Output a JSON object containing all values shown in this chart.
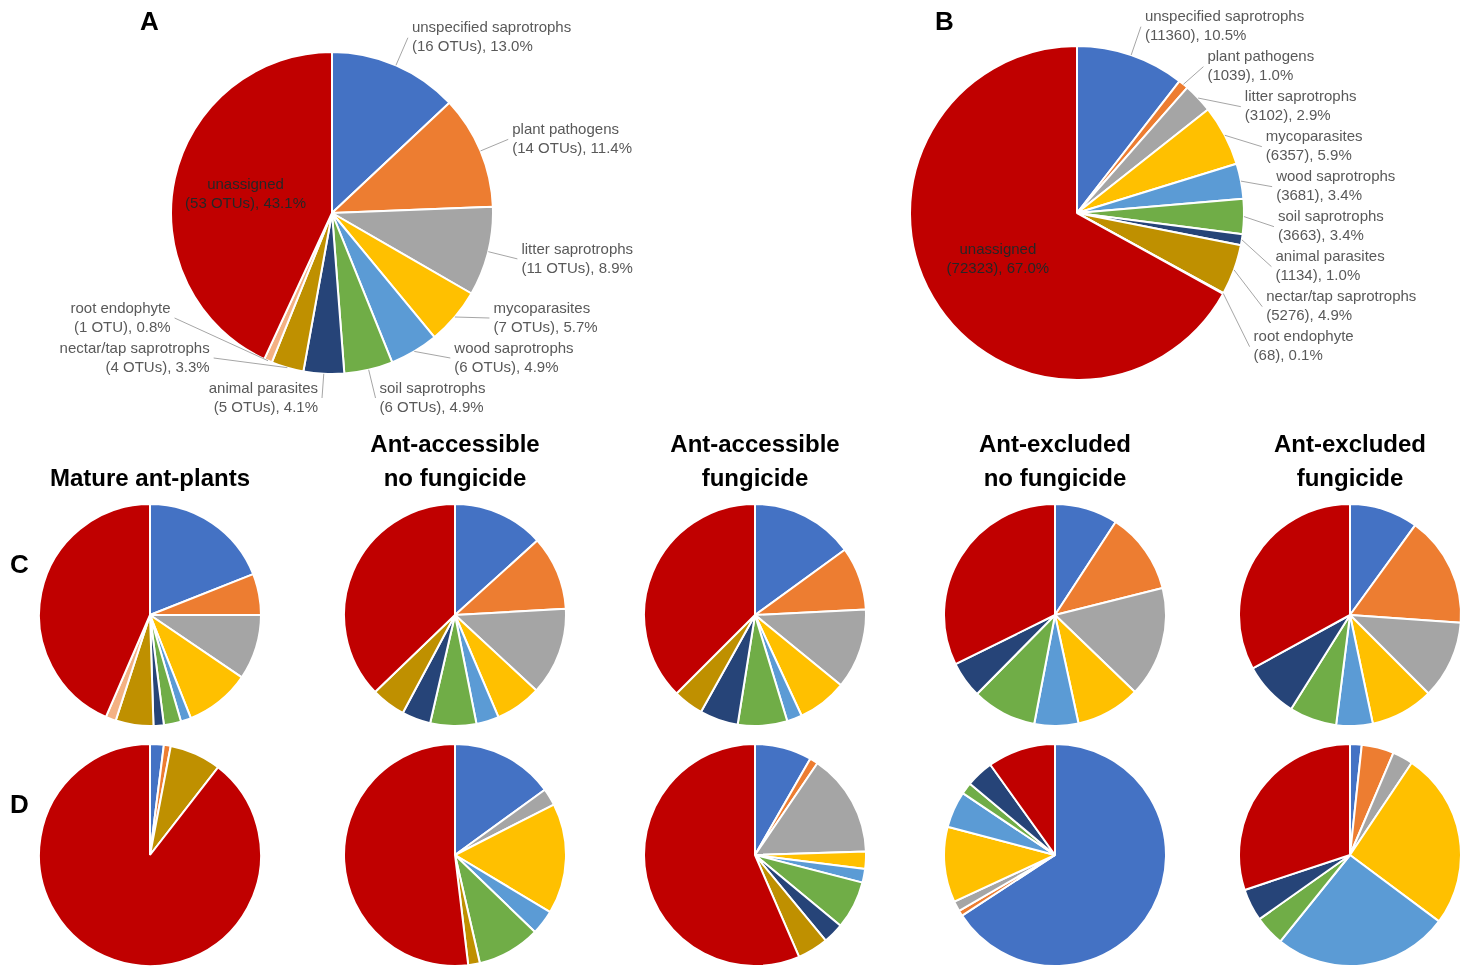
{
  "chart_data": [
    {
      "type": "pie",
      "annotations": [
        "A"
      ],
      "categories": [
        "unspecified saprotrophs",
        "plant pathogens",
        "litter saprotrophs",
        "mycoparasites",
        "wood saprotrophs",
        "soil saprotrophs",
        "animal parasites",
        "nectar/tap saprotrophs",
        "root endophyte",
        "unassigned"
      ],
      "values": [
        16,
        14,
        11,
        7,
        6,
        6,
        5,
        4,
        1,
        53
      ],
      "value_labels": [
        "(16 OTUs), 13.0%",
        "(14 OTUs), 11.4%",
        "(11 OTUs), 8.9%",
        "(7 OTUs), 5.7%",
        "(6 OTUs), 4.9%",
        "(6 OTUs), 4.9%",
        "(5 OTUs), 4.1%",
        "(4 OTUs), 3.3%",
        "(1 OTU), 0.8%",
        "(53 OTUs), 43.1%"
      ],
      "colors": [
        "#4472c4",
        "#ed7d31",
        "#a5a5a5",
        "#ffc000",
        "#5b9bd5",
        "#70ad47",
        "#264478",
        "#bf9000",
        "#f4b183",
        "#c00000"
      ]
    },
    {
      "type": "pie",
      "annotations": [
        "B"
      ],
      "categories": [
        "unspecified saprotrophs",
        "plant pathogens",
        "litter saprotrophs",
        "mycoparasites",
        "wood saprotrophs",
        "soil saprotrophs",
        "animal parasites",
        "nectar/tap saprotrophs",
        "root endophyte",
        "unassigned"
      ],
      "values": [
        11360,
        1039,
        3102,
        6357,
        3681,
        3663,
        1134,
        5276,
        68,
        72323
      ],
      "value_labels": [
        "(11360), 10.5%",
        "(1039), 1.0%",
        "(3102), 2.9%",
        "(6357), 5.9%",
        "(3681), 3.4%",
        "(3663), 3.4%",
        "(1134), 1.0%",
        "(5276), 4.9%",
        "(68), 0.1%",
        "(72323), 67.0%"
      ],
      "colors": [
        "#4472c4",
        "#ed7d31",
        "#a5a5a5",
        "#ffc000",
        "#5b9bd5",
        "#70ad47",
        "#264478",
        "#bf9000",
        "#f4b183",
        "#c00000"
      ]
    },
    {
      "type": "pie",
      "title": "Mature ant-plants",
      "annotations": [
        "C"
      ],
      "categories": [
        null,
        null,
        null,
        null,
        null,
        null,
        null,
        null,
        null,
        null
      ],
      "values": [
        19,
        6,
        9.5,
        9.5,
        1.5,
        2.5,
        1.5,
        5.5,
        1.5,
        43.5
      ],
      "colors": [
        "#4472c4",
        "#ed7d31",
        "#a5a5a5",
        "#ffc000",
        "#5b9bd5",
        "#70ad47",
        "#264478",
        "#bf9000",
        "#f4b183",
        "#c00000"
      ]
    },
    {
      "type": "pie",
      "title": "Ant-accessible no fungicide",
      "categories": [
        null,
        null,
        null,
        null,
        null,
        null,
        null,
        null,
        null
      ],
      "values": [
        13.3,
        10.8,
        12.8,
        6.7,
        3.3,
        6.7,
        4.2,
        5,
        37.2
      ],
      "colors": [
        "#4472c4",
        "#ed7d31",
        "#a5a5a5",
        "#ffc000",
        "#5b9bd5",
        "#70ad47",
        "#264478",
        "#bf9000",
        "#c00000"
      ]
    },
    {
      "type": "pie",
      "title": "Ant-accessible fungicide",
      "categories": [
        null,
        null,
        null,
        null,
        null,
        null,
        null,
        null,
        null
      ],
      "values": [
        15,
        9.2,
        11.7,
        7.2,
        2.2,
        7.2,
        5.6,
        4.4,
        37.5
      ],
      "colors": [
        "#4472c4",
        "#ed7d31",
        "#a5a5a5",
        "#ffc000",
        "#5b9bd5",
        "#70ad47",
        "#264478",
        "#bf9000",
        "#c00000"
      ]
    },
    {
      "type": "pie",
      "title": "Ant-excluded no fungicide",
      "categories": [
        null,
        null,
        null,
        null,
        null,
        null,
        null,
        null
      ],
      "values": [
        9.2,
        11.9,
        16.1,
        9.4,
        6.4,
        9.4,
        5.3,
        32.3
      ],
      "colors": [
        "#4472c4",
        "#ed7d31",
        "#a5a5a5",
        "#ffc000",
        "#5b9bd5",
        "#70ad47",
        "#264478",
        "#c00000"
      ]
    },
    {
      "type": "pie",
      "title": "Ant-excluded fungicide",
      "categories": [
        null,
        null,
        null,
        null,
        null,
        null,
        null,
        null
      ],
      "values": [
        10,
        16.1,
        11.4,
        9.2,
        5.3,
        6.9,
        8.1,
        33
      ],
      "colors": [
        "#4472c4",
        "#ed7d31",
        "#a5a5a5",
        "#ffc000",
        "#5b9bd5",
        "#70ad47",
        "#264478",
        "#c00000"
      ]
    },
    {
      "type": "pie",
      "annotations": [
        "D"
      ],
      "categories": [
        null,
        null,
        null,
        null
      ],
      "values": [
        2,
        1,
        7.5,
        89.5
      ],
      "colors": [
        "#4472c4",
        "#ed7d31",
        "#bf9000",
        "#c00000"
      ]
    },
    {
      "type": "pie",
      "categories": [
        null,
        null,
        null,
        null,
        null,
        null,
        null
      ],
      "values": [
        15,
        2.5,
        16.1,
        3.6,
        9.2,
        1.7,
        51.9
      ],
      "colors": [
        "#4472c4",
        "#a5a5a5",
        "#ffc000",
        "#5b9bd5",
        "#70ad47",
        "#bf9000",
        "#c00000"
      ]
    },
    {
      "type": "pie",
      "categories": [
        null,
        null,
        null,
        null,
        null,
        null,
        null,
        null,
        null
      ],
      "values": [
        8.3,
        1.2,
        15,
        2.5,
        2,
        7,
        3,
        4.5,
        56.5
      ],
      "colors": [
        "#4472c4",
        "#ed7d31",
        "#a5a5a5",
        "#ffc000",
        "#5b9bd5",
        "#70ad47",
        "#264478",
        "#bf9000",
        "#c00000"
      ]
    },
    {
      "type": "pie",
      "categories": [
        null,
        null,
        null,
        null,
        null,
        null,
        null,
        null
      ],
      "values": [
        65.8,
        0.8,
        1.5,
        11,
        5.3,
        1.7,
        4,
        9.9
      ],
      "colors": [
        "#4472c4",
        "#ed7d31",
        "#a5a5a5",
        "#ffc000",
        "#5b9bd5",
        "#70ad47",
        "#264478",
        "#c00000"
      ]
    },
    {
      "type": "pie",
      "categories": [
        null,
        null,
        null,
        null,
        null,
        null,
        null,
        null
      ],
      "values": [
        1.7,
        4.7,
        3,
        25.8,
        25.6,
        4.4,
        4.7,
        30.1
      ],
      "colors": [
        "#4472c4",
        "#ed7d31",
        "#a5a5a5",
        "#ffc000",
        "#5b9bd5",
        "#70ad47",
        "#264478",
        "#c00000"
      ]
    }
  ]
}
